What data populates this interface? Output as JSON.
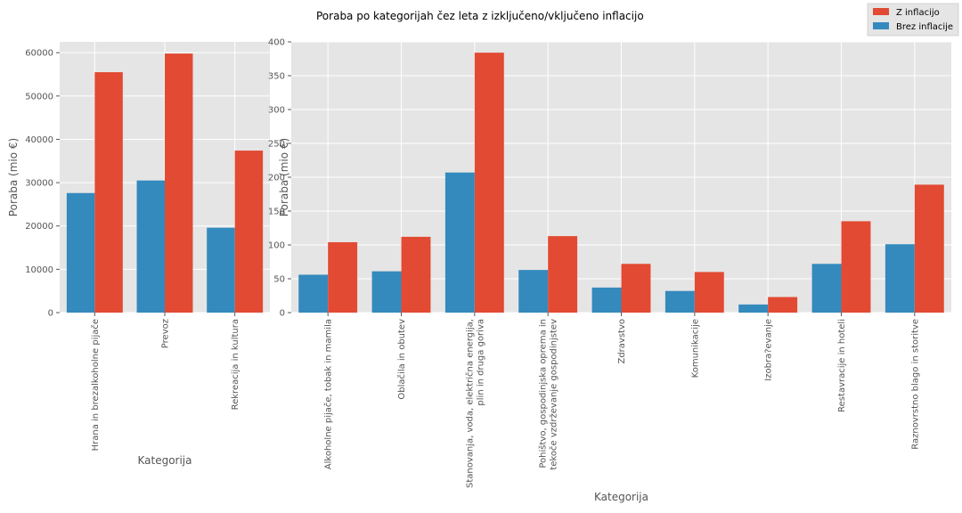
{
  "figure": {
    "title": "Poraba po kategorijah čez leta z izključeno/vključeno inflacijo",
    "legend": {
      "placement": "top-right",
      "entries": [
        {
          "name": "Z inflacijo",
          "color": "#e24a33"
        },
        {
          "name": "Brez inflacije",
          "color": "#348abd"
        }
      ]
    }
  },
  "chart_data": [
    {
      "type": "bar",
      "title": "",
      "xlabel": "Kategorija",
      "ylabel": "Poraba (mio €)",
      "ylim": [
        0,
        62500
      ],
      "yticks": [
        0,
        10000,
        20000,
        30000,
        40000,
        50000,
        60000
      ],
      "grid": true,
      "categories": [
        [
          "Hrana in brezalkoholne pijače"
        ],
        [
          "Prevoz"
        ],
        [
          "Rekreacija in kultura"
        ]
      ],
      "series": [
        {
          "name": "Brez inflacije",
          "color": "#348abd",
          "values": [
            27600,
            30500,
            19600
          ]
        },
        {
          "name": "Z inflacijo",
          "color": "#e24a33",
          "values": [
            55500,
            59800,
            37400
          ]
        }
      ]
    },
    {
      "type": "bar",
      "title": "",
      "xlabel": "Kategorija",
      "ylabel": "Poraba (mio €)",
      "ylim": [
        0,
        400
      ],
      "yticks": [
        0,
        50,
        100,
        150,
        200,
        250,
        300,
        350,
        400
      ],
      "grid": true,
      "categories": [
        [
          "Alkoholne pijače, tobak in mamila"
        ],
        [
          "Oblačila in obutev"
        ],
        [
          "Stanovanja, voda, električna energija,",
          "plin in druga goriva"
        ],
        [
          "Pohištvo, gospodinjska oprema in",
          "tekoče vzdrževanje gospodinjstev"
        ],
        [
          "Zdravstvo"
        ],
        [
          "Komunikacije"
        ],
        [
          "Izobra?evanje"
        ],
        [
          "Restavracije in hoteli"
        ],
        [
          "Raznovrstno blago in storitve"
        ]
      ],
      "series": [
        {
          "name": "Brez inflacije",
          "color": "#348abd",
          "values": [
            56,
            61,
            207,
            63,
            37,
            32,
            12,
            72,
            101
          ]
        },
        {
          "name": "Z inflacijo",
          "color": "#e24a33",
          "values": [
            104,
            112,
            384,
            113,
            72,
            60,
            23,
            135,
            189
          ]
        }
      ]
    }
  ]
}
